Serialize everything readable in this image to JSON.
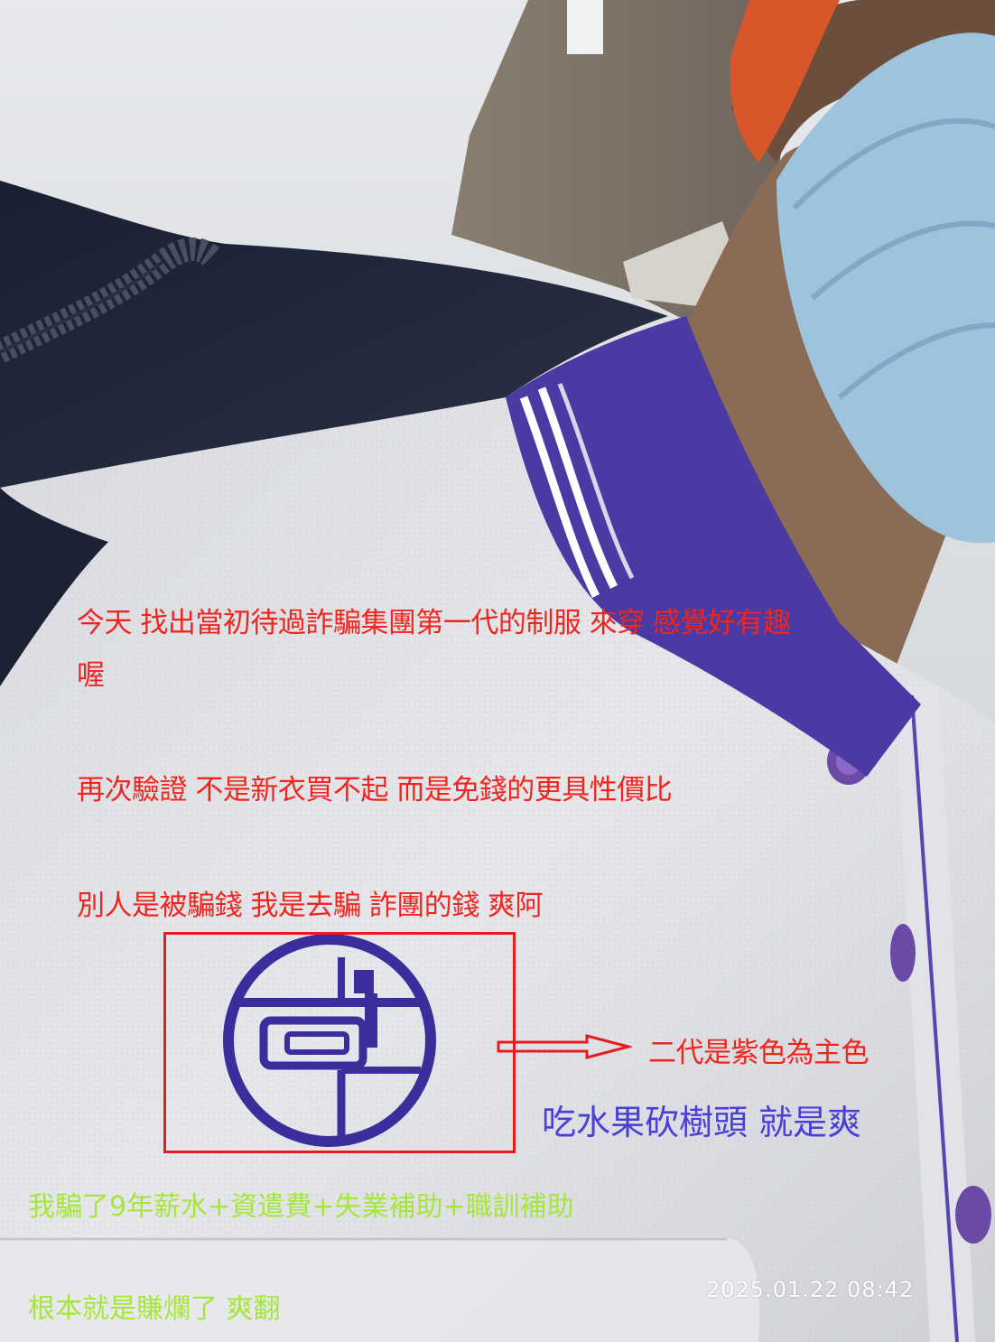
{
  "photo": {
    "subject": "collar-and-chest-of-white-polo-shirt-with-purple-trim",
    "logo_name": "embroidered-circle-logo"
  },
  "captions": {
    "line1": "今天 找出當初待過詐騙集團第一代的制服 來穿 感覺好有趣",
    "line2": "喔",
    "line3": "再次驗證 不是新衣買不起 而是免錢的更具性價比",
    "line4": "別人是被騙錢 我是去騙 詐團的錢 爽阿",
    "arrow_note": "二代是紫色為主色",
    "purple_note": "吃水果砍樹頭 就是爽",
    "green1": "我騙了9年薪水+資遣費+失業補助+職訓補助",
    "green2": "根本就是賺爛了 爽翻"
  },
  "timestamp": "2025.01.22  08:42",
  "colors": {
    "red_text": "#f0251e",
    "green_text": "#a6e63c",
    "purple_text": "#4a3fd6",
    "logo_purple": "#3a2e9c",
    "trim_purple": "#4b3aa3",
    "highlight_red": "#e61d20"
  }
}
